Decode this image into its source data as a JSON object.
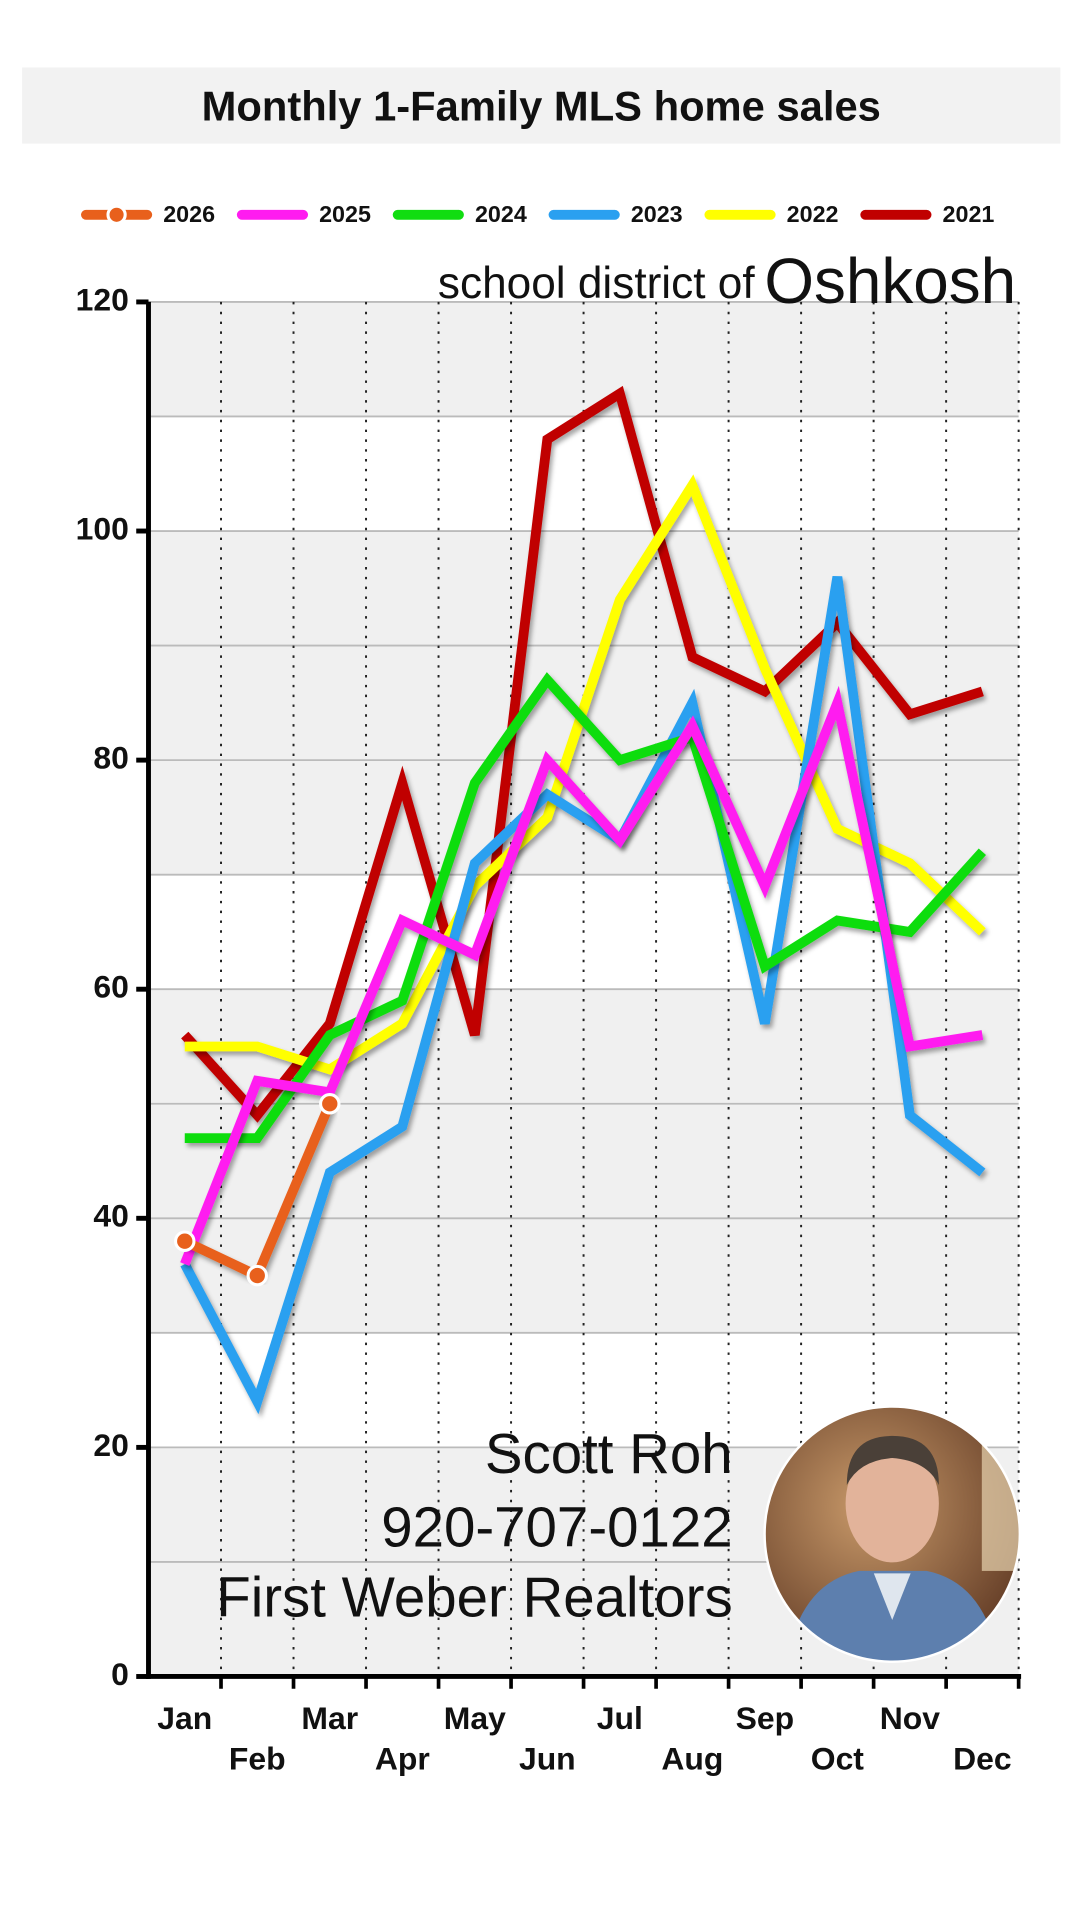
{
  "chart_data": {
    "type": "line",
    "title": "Monthly 1-Family MLS home sales",
    "annotations": [
      "school district of",
      "Oshkosh",
      "Scott Roh",
      "920-707-0122",
      "First Weber Realtors"
    ],
    "categories": [
      "Jan",
      "Feb",
      "Mar",
      "Apr",
      "May",
      "Jun",
      "Jul",
      "Aug",
      "Sep",
      "Oct",
      "Nov",
      "Dec"
    ],
    "series": [
      {
        "name": "2026",
        "color": "#e8601c",
        "markers": true,
        "values": [
          38,
          35,
          50,
          null,
          null,
          null,
          null,
          null,
          null,
          null,
          null,
          null
        ]
      },
      {
        "name": "2025",
        "color": "#ff1cf0",
        "values": [
          36,
          52,
          51,
          66,
          63,
          80,
          73,
          83,
          69,
          85,
          55,
          56
        ]
      },
      {
        "name": "2024",
        "color": "#11dd11",
        "values": [
          47,
          47,
          56,
          59,
          78,
          87,
          80,
          82,
          62,
          66,
          65,
          72
        ]
      },
      {
        "name": "2023",
        "color": "#2aa0f0",
        "values": [
          36,
          24,
          44,
          48,
          71,
          77,
          73,
          85,
          57,
          96,
          49,
          44
        ]
      },
      {
        "name": "2022",
        "color": "#ffff00",
        "values": [
          55,
          55,
          53,
          57,
          69,
          75,
          94,
          104,
          88,
          74,
          71,
          65
        ]
      },
      {
        "name": "2021",
        "color": "#c00000",
        "values": [
          56,
          49,
          57,
          78,
          56,
          108,
          112,
          89,
          86,
          92,
          84,
          86
        ]
      }
    ],
    "ylim": [
      0,
      120
    ],
    "yticks": [
      0,
      20,
      40,
      60,
      80,
      100,
      120
    ],
    "grid": true,
    "legend": "top"
  }
}
